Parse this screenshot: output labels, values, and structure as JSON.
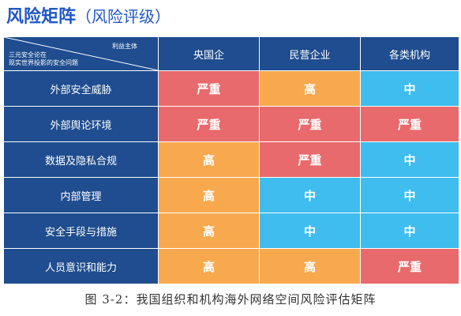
{
  "title": {
    "main": "风险矩阵",
    "sub": "（风险评级）"
  },
  "corner": {
    "top_right": "利益主体",
    "bottom_left_line1": "三元安全论在",
    "bottom_left_line2": "现实世界投影的安全问题"
  },
  "columns": [
    "央国企",
    "民营企业",
    "各类机构"
  ],
  "rows": [
    {
      "label": "外部安全威胁",
      "cells": [
        "严重",
        "高",
        "中"
      ]
    },
    {
      "label": "外部舆论环境",
      "cells": [
        "严重",
        "严重",
        "严重"
      ]
    },
    {
      "label": "数据及隐私合规",
      "cells": [
        "高",
        "严重",
        "中"
      ]
    },
    {
      "label": "内部管理",
      "cells": [
        "高",
        "中",
        "中"
      ]
    },
    {
      "label": "安全手段与措施",
      "cells": [
        "高",
        "中",
        "中"
      ]
    },
    {
      "label": "人员意识和能力",
      "cells": [
        "高",
        "高",
        "严重"
      ]
    }
  ],
  "level_colors": {
    "严重": "#e86a6c",
    "高": "#f8a94e",
    "中": "#3fbdee"
  },
  "header_color": "#1f4d8f",
  "title_color": "#1f56c7",
  "caption": "图 3-2：我国组织和机构海外网络空间风险评估矩阵"
}
